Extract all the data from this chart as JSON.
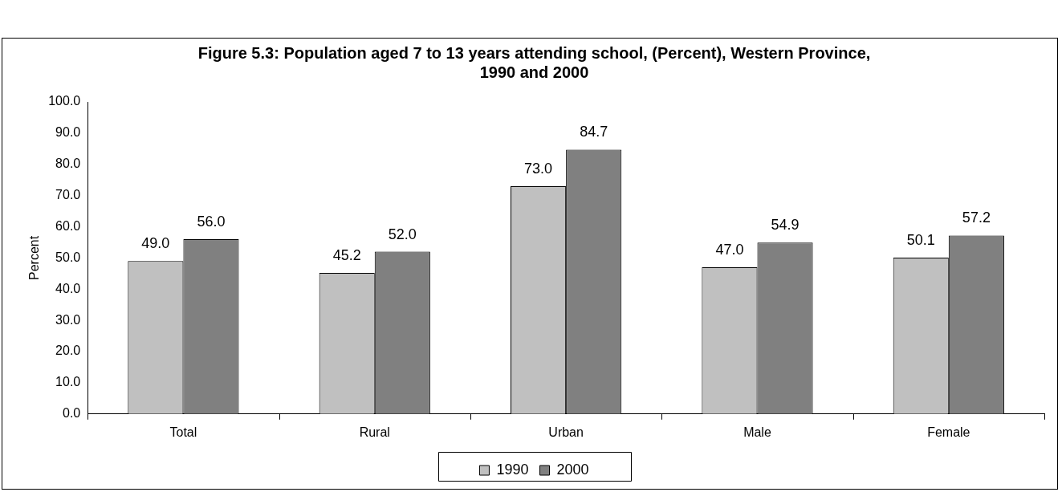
{
  "chart_data": {
    "type": "bar",
    "title": "Figure 5.3: Population aged 7 to 13 years attending school, (Percent), Western Province, 1990 and 2000",
    "ylabel": "Percent",
    "categories": [
      "Total",
      "Rural",
      "Urban",
      "Male",
      "Female"
    ],
    "series": [
      {
        "name": "1990",
        "color": "#c0c0c0",
        "values": [
          49.0,
          45.2,
          73.0,
          47.0,
          50.1
        ],
        "value_labels": [
          "49.0",
          "45.2",
          "73.0",
          "47.0",
          "50.1"
        ]
      },
      {
        "name": "2000",
        "color": "#808080",
        "values": [
          56.0,
          52.0,
          84.7,
          54.9,
          57.2
        ],
        "value_labels": [
          "56.0",
          "52.0",
          "84.7",
          "54.9",
          "57.2"
        ]
      }
    ],
    "ylim": [
      0,
      100
    ],
    "yticks": [
      {
        "value": 0,
        "label": "0.0"
      },
      {
        "value": 10,
        "label": "10.0"
      },
      {
        "value": 20,
        "label": "20.0"
      },
      {
        "value": 30,
        "label": "30.0"
      },
      {
        "value": 40,
        "label": "40.0"
      },
      {
        "value": 50,
        "label": "50.0"
      },
      {
        "value": 60,
        "label": "60.0"
      },
      {
        "value": 70,
        "label": "70.0"
      },
      {
        "value": 80,
        "label": "80.0"
      },
      {
        "value": 90,
        "label": "90.0"
      },
      {
        "value": 100,
        "label": "100.0"
      }
    ],
    "grid": false,
    "legend": "bottom"
  }
}
